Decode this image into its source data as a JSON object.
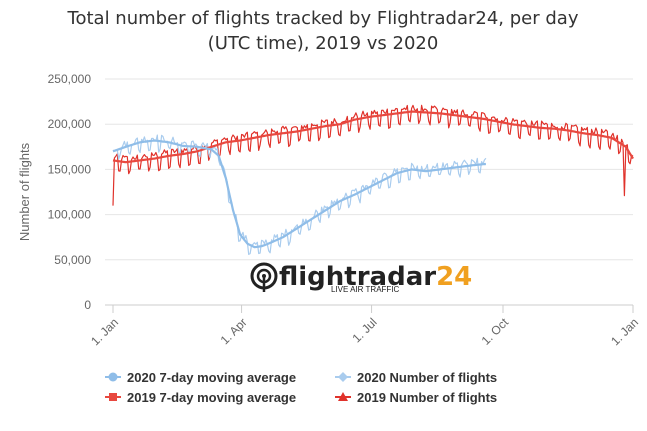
{
  "chart_data": {
    "type": "line",
    "title_lines": [
      "Total number of flights tracked by Flightradar24, per day",
      "(UTC time), 2019 vs 2020"
    ],
    "ylabel": "Number of flights",
    "xlabel": "",
    "ylim": [
      0,
      250000
    ],
    "yticks": [
      0,
      50000,
      100000,
      150000,
      200000,
      250000
    ],
    "ytick_labels": [
      "0",
      "50,000",
      "100,000",
      "150,000",
      "200,000",
      "250,000"
    ],
    "xlim_days": [
      1,
      365
    ],
    "xticks": [
      {
        "day": 1,
        "label": "1. Jan"
      },
      {
        "day": 91,
        "label": "1. Apr"
      },
      {
        "day": 182,
        "label": "1. Jul"
      },
      {
        "day": 274,
        "label": "1. Oct"
      },
      {
        "day": 365,
        "label": "1. Jan"
      }
    ],
    "grid": "horizontal",
    "legend_position": "bottom-center",
    "series": [
      {
        "name": "2020 7-day moving average",
        "color": "#8fbde8",
        "marker": "circle",
        "kind": "smooth",
        "x": [
          1,
          10,
          20,
          30,
          40,
          50,
          60,
          70,
          75,
          80,
          85,
          90,
          95,
          100,
          105,
          110,
          120,
          130,
          140,
          150,
          160,
          170,
          180,
          190,
          200,
          210,
          220,
          230,
          240,
          250,
          255,
          262
        ],
        "y": [
          170000,
          175000,
          180000,
          182000,
          180000,
          176000,
          175000,
          172000,
          165000,
          140000,
          105000,
          78000,
          68000,
          64000,
          65000,
          68000,
          75000,
          85000,
          95000,
          105000,
          115000,
          122000,
          130000,
          138000,
          146000,
          150000,
          148000,
          150000,
          152000,
          154000,
          155000,
          156000
        ]
      },
      {
        "name": "2020 Number of flights",
        "color": "#a9ccee",
        "marker": "diamond",
        "kind": "daily",
        "x_start": 1,
        "x_end": 262,
        "weekly_amplitude": 9000,
        "noise": 4000
      },
      {
        "name": "2019 7-day moving average",
        "color": "#e8483f",
        "marker": "square",
        "kind": "smooth",
        "x": [
          1,
          10,
          20,
          30,
          40,
          50,
          60,
          70,
          80,
          90,
          100,
          110,
          120,
          130,
          140,
          150,
          160,
          170,
          180,
          190,
          200,
          210,
          220,
          230,
          240,
          250,
          260,
          270,
          280,
          290,
          300,
          310,
          320,
          330,
          340,
          350,
          360,
          365
        ],
        "y": [
          160000,
          158000,
          160000,
          162000,
          165000,
          167000,
          170000,
          175000,
          180000,
          182000,
          185000,
          188000,
          190000,
          192000,
          195000,
          198000,
          200000,
          205000,
          208000,
          210000,
          212000,
          214000,
          213000,
          212000,
          210000,
          208000,
          206000,
          203000,
          200000,
          198000,
          196000,
          195000,
          193000,
          190000,
          188000,
          185000,
          175000,
          162000
        ]
      },
      {
        "name": "2019 Number of flights",
        "color": "#e0322b",
        "marker": "triangle",
        "kind": "daily",
        "x_start": 1,
        "x_end": 365,
        "weekly_amplitude": 12000,
        "noise": 3500,
        "dips": [
          {
            "day": 1,
            "y": 110000
          },
          {
            "day": 359,
            "y": 121000
          }
        ]
      }
    ],
    "legend": [
      {
        "label": "2020 7-day moving average",
        "series": 0
      },
      {
        "label": "2020 Number of flights",
        "series": 1
      },
      {
        "label": "2019 7-day moving average",
        "series": 2
      },
      {
        "label": "2019 Number of flights",
        "series": 3
      }
    ],
    "watermark": {
      "brand": "flightradar24",
      "tagline": "LIVE AIR TRAFFIC"
    }
  }
}
